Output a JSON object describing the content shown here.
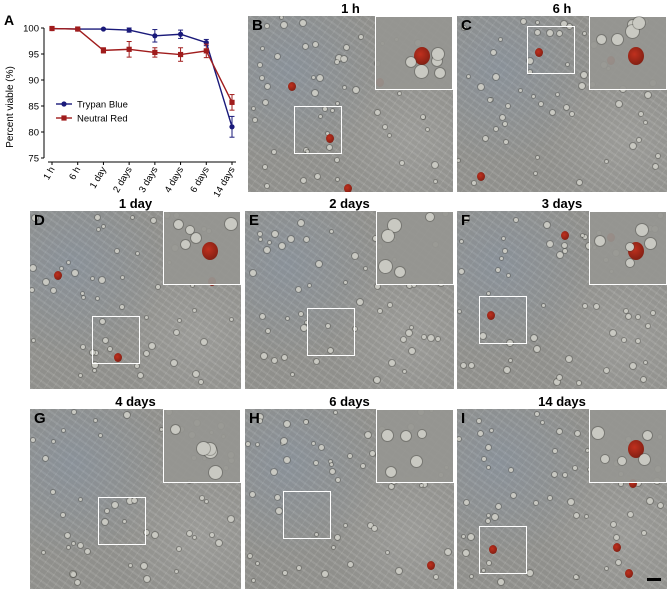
{
  "chart_data": {
    "type": "line",
    "panel_label": "A",
    "ylabel": "Percent viable (%)",
    "xlabel": "",
    "categories": [
      "1 h",
      "6 h",
      "1 day",
      "2 days",
      "3 days",
      "4 days",
      "6 days",
      "14 days"
    ],
    "ylim": [
      75,
      100
    ],
    "yticks": [
      75,
      80,
      85,
      90,
      95,
      100
    ],
    "error_bars": true,
    "legend_position": "left",
    "series": [
      {
        "name": "Trypan Blue",
        "color": "#1a1a7a",
        "values": [
          99.9,
          99.8,
          99.8,
          99.6,
          98.5,
          98.8,
          97.2,
          81.0
        ],
        "errors": [
          0.1,
          0.1,
          0.1,
          0.4,
          1.2,
          0.8,
          0.6,
          2.0
        ]
      },
      {
        "name": "Neutral Red",
        "color": "#a01c1c",
        "values": [
          99.9,
          99.8,
          95.7,
          95.9,
          95.3,
          94.9,
          95.6,
          85.7
        ],
        "errors": [
          0.1,
          0.1,
          0.5,
          1.5,
          0.9,
          1.3,
          1.3,
          1.5
        ]
      }
    ]
  },
  "micrographs": [
    {
      "letter": "B",
      "title": "1 h",
      "red_cells": 4
    },
    {
      "letter": "C",
      "title": "6 h",
      "red_cells": 3
    },
    {
      "letter": "D",
      "title": "1 day",
      "red_cells": 3
    },
    {
      "letter": "E",
      "title": "2 days",
      "red_cells": 0
    },
    {
      "letter": "F",
      "title": "3 days",
      "red_cells": 3
    },
    {
      "letter": "G",
      "title": "4 days",
      "red_cells": 0
    },
    {
      "letter": "H",
      "title": "6 days",
      "red_cells": 1
    },
    {
      "letter": "I",
      "title": "14 days",
      "red_cells": 4
    }
  ]
}
